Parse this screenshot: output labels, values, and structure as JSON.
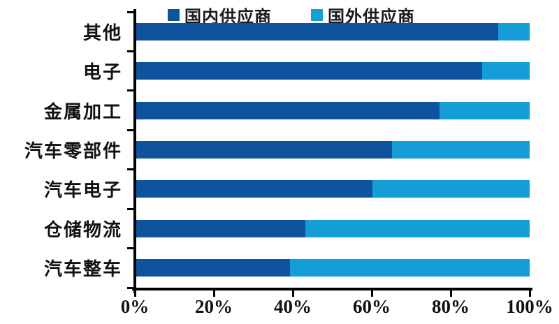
{
  "background_color": "#ffffff",
  "axis_color": "#000000",
  "chart_data": {
    "type": "bar",
    "orientation": "horizontal",
    "stacked": true,
    "unit": "%",
    "title": "",
    "xlabel": "",
    "ylabel": "",
    "xlim": [
      0,
      100
    ],
    "grid": false,
    "legend_position": "top",
    "categories": [
      "其他",
      "电子",
      "金属加工",
      "汽车零部件",
      "汽车电子",
      "仓储物流",
      "汽车整车"
    ],
    "series": [
      {
        "name": "国内供应商",
        "color": "#0E539E",
        "values": [
          92,
          88,
          77,
          65,
          60,
          43,
          39
        ]
      },
      {
        "name": "国外供应商",
        "color": "#149DD6",
        "values": [
          8,
          12,
          23,
          35,
          40,
          57,
          61
        ]
      }
    ],
    "x_ticks": [
      "0%",
      "20%",
      "40%",
      "60%",
      "80%",
      "100%"
    ]
  }
}
